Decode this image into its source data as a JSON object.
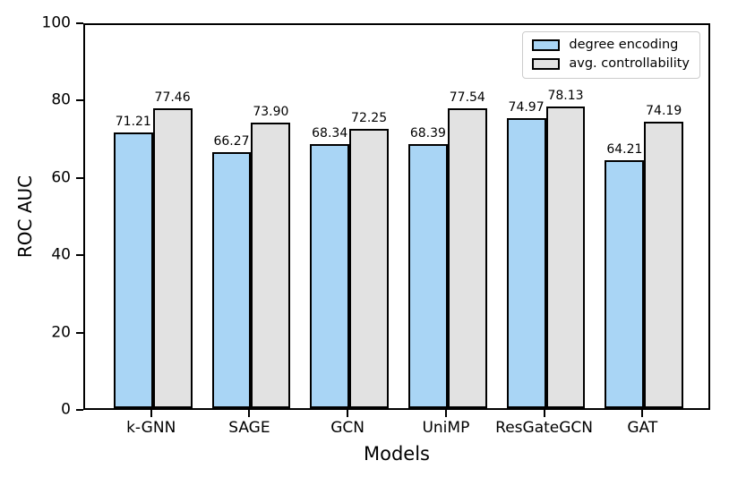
{
  "chart_data": {
    "type": "bar",
    "title": "",
    "xlabel": "Models",
    "ylabel": "ROC AUC",
    "ylim": [
      0,
      100
    ],
    "yticks": [
      0,
      20,
      40,
      60,
      80,
      100
    ],
    "categories": [
      "k-GNN",
      "SAGE",
      "GCN",
      "UniMP",
      "ResGateGCN",
      "GAT"
    ],
    "series": [
      {
        "name": "degree encoding",
        "color": "#a9d5f5",
        "values": [
          71.21,
          66.27,
          68.34,
          68.39,
          74.97,
          64.21
        ]
      },
      {
        "name": "avg. controllability",
        "color": "#e2e2e2",
        "values": [
          77.46,
          73.9,
          72.25,
          77.54,
          78.13,
          74.19
        ]
      }
    ],
    "value_labels": [
      [
        "71.21",
        "66.27",
        "68.34",
        "68.39",
        "74.97",
        "64.21"
      ],
      [
        "77.46",
        "73.90",
        "72.25",
        "77.54",
        "78.13",
        "74.19"
      ]
    ],
    "bar_edge_color": "#000000",
    "legend_position": "upper right",
    "legend_border_color": "#cccccc",
    "grid": false
  }
}
